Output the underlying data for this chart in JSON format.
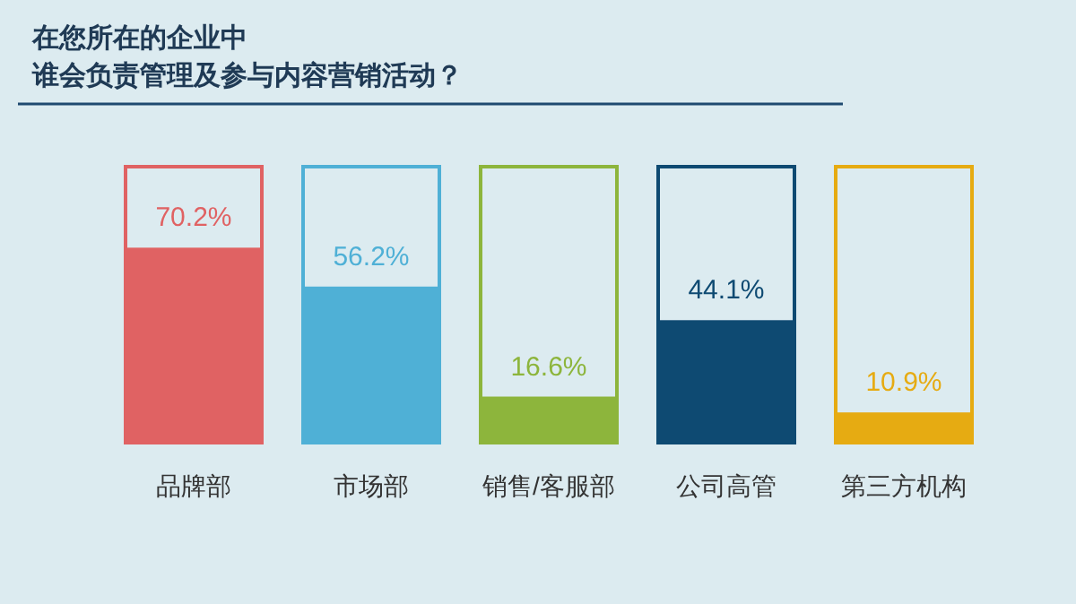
{
  "chart_data": {
    "type": "bar",
    "title": "在您所在的企业中",
    "subtitle": "谁会负责管理及参与内容营销活动？",
    "categories": [
      "品牌部",
      "市场部",
      "销售/客服部",
      "公司高管",
      "第三方机构"
    ],
    "series": [
      {
        "values": [
          100,
          100,
          100,
          100,
          100
        ],
        "colors": [
          "#e06263",
          "#4fb0d6",
          "#8db53c",
          "#0e4a72",
          "#e6ab12"
        ]
      },
      {
        "values": [
          70.2,
          56.2,
          16.6,
          44.1,
          10.9
        ],
        "colors": [
          "#e06263",
          "#4fb0d6",
          "#8db53c",
          "#0e4a72",
          "#e6ab12"
        ],
        "value_labels": [
          "70.2%",
          "56.2%",
          "16.6%",
          "44.1%",
          "10.9%"
        ]
      }
    ],
    "ylim": [
      0,
      100
    ],
    "tick_labels": "x"
  }
}
